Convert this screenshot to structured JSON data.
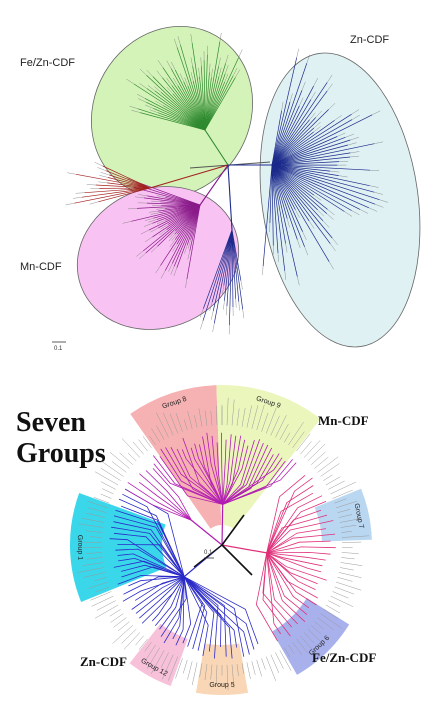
{
  "top_tree": {
    "clades": [
      {
        "id": "fezn",
        "label": "Fe/Zn-CDF",
        "fill": "#d4f3b8",
        "branch_color": "#2f8a2f"
      },
      {
        "id": "zn",
        "label": "Zn-CDF",
        "fill": "#dff1f3",
        "branch_color": "#1c2a8c"
      },
      {
        "id": "mn",
        "label": "Mn-CDF",
        "fill": "#f8c2f2",
        "branch_color": "#8a1a8a"
      }
    ],
    "outgroup_color": "#a32020",
    "scale_label": "0.1"
  },
  "bottom_tree": {
    "title_line1": "Seven",
    "title_line2": "Groups",
    "scale_label": "0.1",
    "family_labels": {
      "mn": "Mn-CDF",
      "fezn": "Fe/Zn-CDF",
      "zn": "Zn-CDF"
    },
    "groups": [
      {
        "id": "g8",
        "label": "Group 8",
        "color": "#f4a4a4"
      },
      {
        "id": "g9",
        "label": "Group 9",
        "color": "#e8f4b0"
      },
      {
        "id": "g7",
        "label": "Group 7",
        "color": "#aed0f0"
      },
      {
        "id": "g6",
        "label": "Group 6",
        "color": "#9aa3ea"
      },
      {
        "id": "g5",
        "label": "Group 5",
        "color": "#f8cfa8"
      },
      {
        "id": "g12",
        "label": "Group 12",
        "color": "#f7b6d4"
      },
      {
        "id": "g1",
        "label": "Group 1",
        "color": "#18d0e8"
      }
    ]
  }
}
